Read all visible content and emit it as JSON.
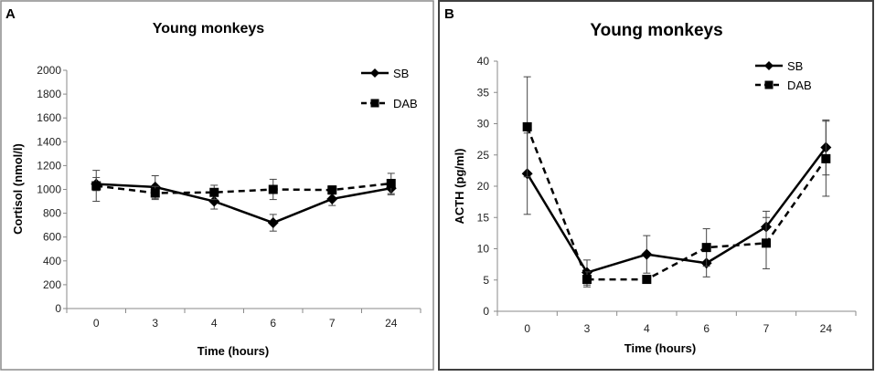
{
  "panels": [
    {
      "letter": "A",
      "chart_data": {
        "type": "line",
        "title": "Young monkeys",
        "xlabel": "Time (hours)",
        "ylabel": "Cortisol (nmol/l)",
        "categories": [
          "0",
          "3",
          "4",
          "6",
          "7",
          "24"
        ],
        "ylim": [
          0,
          2000
        ],
        "yticks": [
          0,
          200,
          400,
          600,
          800,
          1000,
          1200,
          1400,
          1600,
          1800,
          2000
        ],
        "grid": false,
        "legend_position": "top-right",
        "series": [
          {
            "name": "SB",
            "marker": "diamond",
            "line": "solid",
            "color": "#000000",
            "values": [
              1045,
              1020,
              900,
              720,
              920,
              1010
            ],
            "errors": [
              55,
              95,
              65,
              70,
              55,
              55
            ]
          },
          {
            "name": "DAB",
            "marker": "square",
            "line": "dashed",
            "color": "#000000",
            "values": [
              1030,
              970,
              975,
              1000,
              995,
              1050
            ],
            "errors": [
              130,
              55,
              60,
              85,
              35,
              85
            ]
          }
        ]
      }
    },
    {
      "letter": "B",
      "chart_data": {
        "type": "line",
        "title": "Young monkeys",
        "xlabel": "Time (hours)",
        "ylabel": "ACTH (pg/ml)",
        "categories": [
          "0",
          "3",
          "4",
          "6",
          "7",
          "24"
        ],
        "ylim": [
          0,
          40
        ],
        "yticks": [
          0,
          5,
          10,
          15,
          20,
          25,
          30,
          35,
          40
        ],
        "grid": false,
        "legend_position": "top-right",
        "series": [
          {
            "name": "SB",
            "marker": "diamond",
            "line": "solid",
            "color": "#000000",
            "values": [
              22,
              6.2,
              9.1,
              7.7,
              13.5,
              26.2
            ],
            "errors": [
              6.5,
              2,
              3,
              2.2,
              2.5,
              4.4
            ]
          },
          {
            "name": "DAB",
            "marker": "square",
            "line": "dashed",
            "color": "#000000",
            "values": [
              29.5,
              5.1,
              5.1,
              10.2,
              10.9,
              24.4
            ],
            "errors": [
              8,
              1.2,
              0.5,
              3,
              4.1,
              6
            ]
          }
        ]
      }
    }
  ]
}
